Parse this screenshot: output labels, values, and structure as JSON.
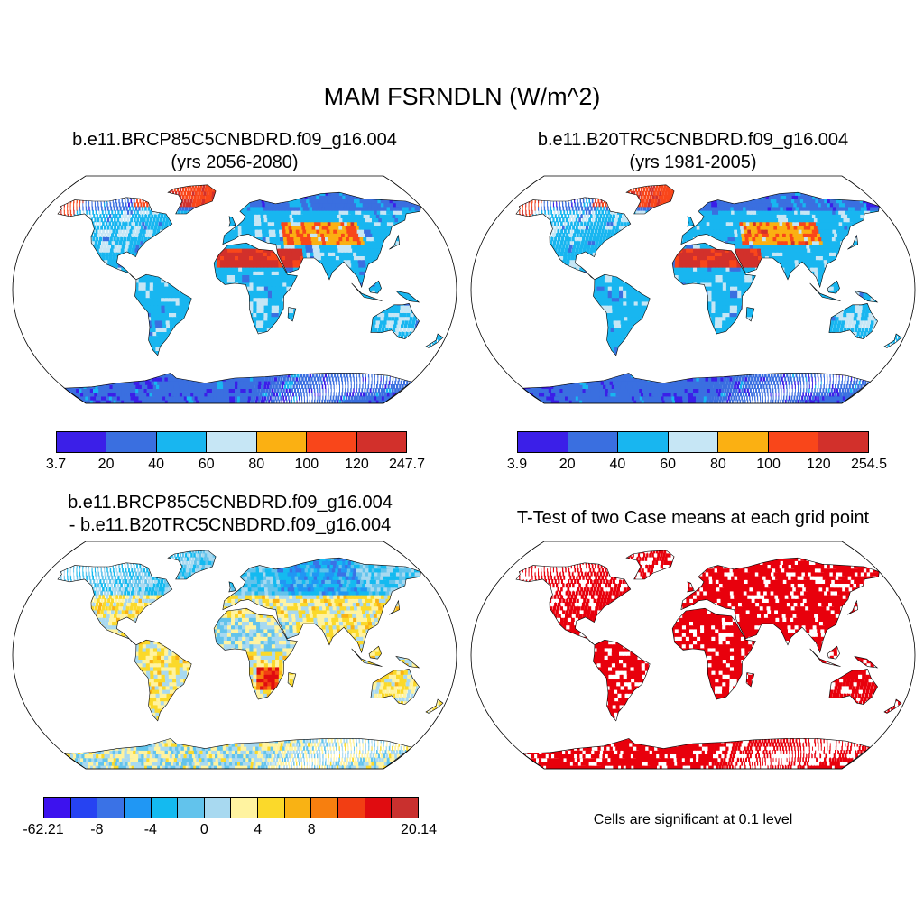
{
  "title": "MAM FSRNDLN (W/m^2)",
  "panels": [
    {
      "title_line1": "b.e11.BRCP85C5CNBDRD.f09_g16.004",
      "title_line2": "(yrs 2056-2080)",
      "colorbar": {
        "colors": [
          "#3b1fe8",
          "#3a6fe0",
          "#18b6f0",
          "#c6e6f5",
          "#fbb012",
          "#f9461a",
          "#d2302b"
        ],
        "tick_labels": [
          "3.7",
          "20",
          "40",
          "60",
          "80",
          "100",
          "120",
          "247.7"
        ]
      }
    },
    {
      "title_line1": "b.e11.B20TRC5CNBDRD.f09_g16.004",
      "title_line2": "(yrs 1981-2005)",
      "colorbar": {
        "colors": [
          "#3b1fe8",
          "#3a6fe0",
          "#18b6f0",
          "#c6e6f5",
          "#fbb012",
          "#f9461a",
          "#d2302b"
        ],
        "tick_labels": [
          "3.9",
          "20",
          "40",
          "60",
          "80",
          "100",
          "120",
          "254.5"
        ]
      }
    },
    {
      "title_line1": "b.e11.BRCP85C5CNBDRD.f09_g16.004",
      "title_line2": "- b.e11.B20TRC5CNBDRD.f09_g16.004",
      "colorbar": {
        "colors": [
          "#3d12ee",
          "#2643f2",
          "#3a72e6",
          "#2097f4",
          "#14baf0",
          "#62c3ec",
          "#a8d9f0",
          "#fff3a0",
          "#fbd92a",
          "#f9b214",
          "#f77f0f",
          "#f23e13",
          "#e00c10",
          "#c9302e"
        ],
        "tick_labels": [
          "-62.21",
          "-8",
          "-4",
          "0",
          "4",
          "8",
          "20.14"
        ]
      }
    },
    {
      "title_line1": "T-Test of two Case means at each grid point",
      "significance_color": "#e8000c",
      "note": "Cells are significant at 0.1 level"
    }
  ]
}
